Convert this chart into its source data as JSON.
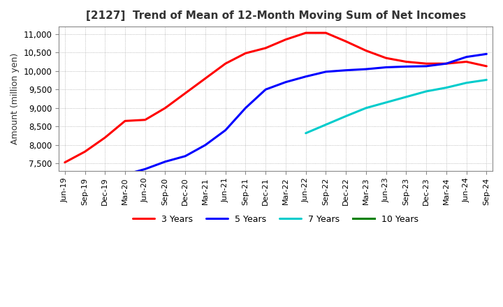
{
  "title": "[2127]  Trend of Mean of 12-Month Moving Sum of Net Incomes",
  "ylabel": "Amount (million yen)",
  "background_color": "#ffffff",
  "plot_bg_color": "#ffffff",
  "grid_color": "#aaaaaa",
  "ylim": [
    7300,
    11200
  ],
  "yticks": [
    7500,
    8000,
    8500,
    9000,
    9500,
    10000,
    10500,
    11000
  ],
  "series": {
    "3 Years": {
      "color": "#ff0000",
      "data": {
        "Jun-19": 7530,
        "Sep-19": 7820,
        "Dec-19": 8200,
        "Mar-20": 8650,
        "Jun-20": 8680,
        "Sep-20": 9000,
        "Dec-20": 9400,
        "Mar-21": 9800,
        "Jun-21": 10200,
        "Sep-21": 10480,
        "Dec-21": 10620,
        "Mar-22": 10850,
        "Jun-22": 11030,
        "Sep-22": 11030,
        "Dec-22": 10800,
        "Mar-23": 10550,
        "Jun-23": 10350,
        "Sep-23": 10250,
        "Dec-23": 10200,
        "Mar-24": 10200,
        "Jun-24": 10250,
        "Sep-24": 10130
      }
    },
    "5 Years": {
      "color": "#0000ff",
      "data": {
        "Mar-20": 7200,
        "Jun-20": 7350,
        "Sep-20": 7550,
        "Dec-20": 7700,
        "Mar-21": 8000,
        "Jun-21": 8400,
        "Sep-21": 9000,
        "Dec-21": 9500,
        "Mar-22": 9700,
        "Jun-22": 9850,
        "Sep-22": 9980,
        "Dec-22": 10020,
        "Mar-23": 10050,
        "Jun-23": 10100,
        "Sep-23": 10120,
        "Dec-23": 10130,
        "Mar-24": 10200,
        "Jun-24": 10380,
        "Sep-24": 10460
      }
    },
    "7 Years": {
      "color": "#00cccc",
      "data": {
        "Jun-22": 8320,
        "Sep-22": 8550,
        "Dec-22": 8780,
        "Mar-23": 9000,
        "Jun-23": 9150,
        "Sep-23": 9300,
        "Dec-23": 9450,
        "Mar-24": 9550,
        "Jun-24": 9680,
        "Sep-24": 9760
      }
    },
    "10 Years": {
      "color": "#008000",
      "data": {}
    }
  },
  "x_tick_labels": [
    "Jun-19",
    "Sep-19",
    "Dec-19",
    "Mar-20",
    "Jun-20",
    "Sep-20",
    "Dec-20",
    "Mar-21",
    "Jun-21",
    "Sep-21",
    "Dec-21",
    "Mar-22",
    "Jun-22",
    "Sep-22",
    "Dec-22",
    "Mar-23",
    "Jun-23",
    "Sep-23",
    "Dec-23",
    "Mar-24",
    "Jun-24",
    "Sep-24"
  ]
}
